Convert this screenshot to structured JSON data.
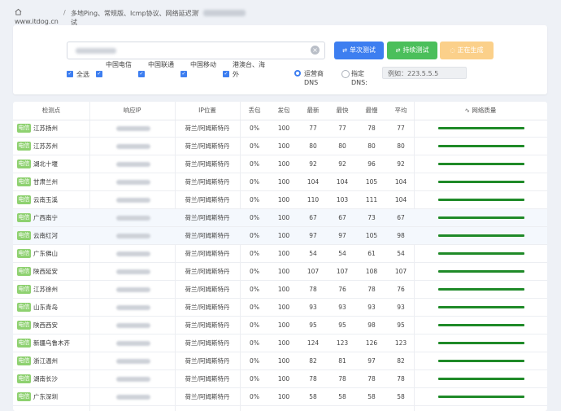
{
  "header": {
    "site_url": "www.itdog.cn",
    "breadcrumb_sep": "/",
    "page_title": "多地Ping、常规版、Icmp协议、网络延迟测试"
  },
  "controls": {
    "clear_glyph": "×",
    "single_test_label": "单次测试",
    "continuous_test_label": "持续测试",
    "generating_label": "正在生成",
    "checkboxes": [
      {
        "label": "全选",
        "checked": true
      },
      {
        "label": "中国电信",
        "checked": true
      },
      {
        "label": "中国联通",
        "checked": true
      },
      {
        "label": "中国移动",
        "checked": true
      },
      {
        "label": "港澳台、海外",
        "checked": true
      }
    ],
    "radio_operator_dns": "运营商DNS",
    "radio_custom_dns": "指定DNS:",
    "dns_placeholder": "例如：223.5.5.5"
  },
  "table": {
    "columns": [
      "检测点",
      "响应IP",
      "IP位置",
      "丢包",
      "发包",
      "最新",
      "最快",
      "最慢",
      "平均",
      "网络质量"
    ],
    "rows": [
      {
        "isp": "电信",
        "node": "江苏扬州",
        "location": "荷兰/阿姆斯特丹",
        "loss": "0%",
        "sent": "100",
        "latest": "77",
        "fastest": "77",
        "slowest": "78",
        "avg": "77"
      },
      {
        "isp": "电信",
        "node": "江苏苏州",
        "location": "荷兰/阿姆斯特丹",
        "loss": "0%",
        "sent": "100",
        "latest": "80",
        "fastest": "80",
        "slowest": "80",
        "avg": "80"
      },
      {
        "isp": "电信",
        "node": "湖北十堰",
        "location": "荷兰/阿姆斯特丹",
        "loss": "0%",
        "sent": "100",
        "latest": "92",
        "fastest": "92",
        "slowest": "96",
        "avg": "92"
      },
      {
        "isp": "电信",
        "node": "甘肃兰州",
        "location": "荷兰/阿姆斯特丹",
        "loss": "0%",
        "sent": "100",
        "latest": "104",
        "fastest": "104",
        "slowest": "105",
        "avg": "104"
      },
      {
        "isp": "电信",
        "node": "云南玉溪",
        "location": "荷兰/阿姆斯特丹",
        "loss": "0%",
        "sent": "100",
        "latest": "110",
        "fastest": "103",
        "slowest": "111",
        "avg": "104"
      },
      {
        "isp": "电信",
        "node": "广西南宁",
        "location": "荷兰/阿姆斯特丹",
        "loss": "0%",
        "sent": "100",
        "latest": "67",
        "fastest": "67",
        "slowest": "73",
        "avg": "67"
      },
      {
        "isp": "电信",
        "node": "云南红河",
        "location": "荷兰/阿姆斯特丹",
        "loss": "0%",
        "sent": "100",
        "latest": "97",
        "fastest": "97",
        "slowest": "105",
        "avg": "98"
      },
      {
        "isp": "电信",
        "node": "广东佛山",
        "location": "荷兰/阿姆斯特丹",
        "loss": "0%",
        "sent": "100",
        "latest": "54",
        "fastest": "54",
        "slowest": "61",
        "avg": "54"
      },
      {
        "isp": "电信",
        "node": "陕西延安",
        "location": "荷兰/阿姆斯特丹",
        "loss": "0%",
        "sent": "100",
        "latest": "107",
        "fastest": "107",
        "slowest": "108",
        "avg": "107"
      },
      {
        "isp": "电信",
        "node": "江苏徐州",
        "location": "荷兰/阿姆斯特丹",
        "loss": "0%",
        "sent": "100",
        "latest": "78",
        "fastest": "76",
        "slowest": "78",
        "avg": "76"
      },
      {
        "isp": "电信",
        "node": "山东青岛",
        "location": "荷兰/阿姆斯特丹",
        "loss": "0%",
        "sent": "100",
        "latest": "93",
        "fastest": "93",
        "slowest": "93",
        "avg": "93"
      },
      {
        "isp": "电信",
        "node": "陕西西安",
        "location": "荷兰/阿姆斯特丹",
        "loss": "0%",
        "sent": "100",
        "latest": "95",
        "fastest": "95",
        "slowest": "98",
        "avg": "95"
      },
      {
        "isp": "电信",
        "node": "新疆乌鲁木齐",
        "location": "荷兰/阿姆斯特丹",
        "loss": "0%",
        "sent": "100",
        "latest": "124",
        "fastest": "123",
        "slowest": "126",
        "avg": "123"
      },
      {
        "isp": "电信",
        "node": "浙江温州",
        "location": "荷兰/阿姆斯特丹",
        "loss": "0%",
        "sent": "100",
        "latest": "82",
        "fastest": "81",
        "slowest": "97",
        "avg": "82"
      },
      {
        "isp": "电信",
        "node": "湖南长沙",
        "location": "荷兰/阿姆斯特丹",
        "loss": "0%",
        "sent": "100",
        "latest": "78",
        "fastest": "78",
        "slowest": "78",
        "avg": "78"
      },
      {
        "isp": "电信",
        "node": "广东深圳",
        "location": "荷兰/阿姆斯特丹",
        "loss": "0%",
        "sent": "100",
        "latest": "58",
        "fastest": "58",
        "slowest": "58",
        "avg": "58"
      }
    ]
  },
  "colors": {
    "primary": "#3d7ef0",
    "success": "#4bbf5b",
    "warning": "#fbd08a",
    "isp_badge": "#8ed170",
    "quality_bar": "#1f8a28"
  },
  "icons": {
    "home": "home-icon",
    "clear": "clear-icon",
    "single_test": "refresh-icon",
    "continuous_test": "loop-icon",
    "generating": "spinner-icon",
    "network_quality": "activity-icon"
  }
}
